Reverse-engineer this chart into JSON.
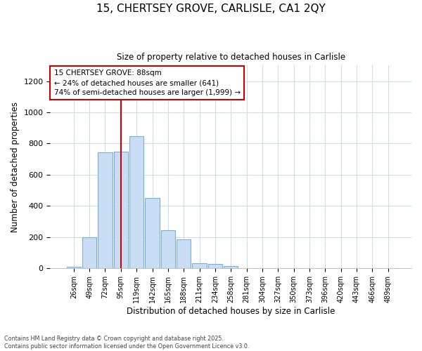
{
  "title_line1": "15, CHERTSEY GROVE, CARLISLE, CA1 2QY",
  "title_line2": "Size of property relative to detached houses in Carlisle",
  "xlabel": "Distribution of detached houses by size in Carlisle",
  "ylabel": "Number of detached properties",
  "bar_labels": [
    "26sqm",
    "49sqm",
    "72sqm",
    "95sqm",
    "119sqm",
    "142sqm",
    "165sqm",
    "188sqm",
    "211sqm",
    "234sqm",
    "258sqm",
    "281sqm",
    "304sqm",
    "327sqm",
    "350sqm",
    "373sqm",
    "396sqm",
    "420sqm",
    "443sqm",
    "466sqm",
    "489sqm"
  ],
  "bar_values": [
    10,
    200,
    745,
    750,
    845,
    450,
    245,
    185,
    35,
    30,
    15,
    0,
    0,
    0,
    0,
    0,
    0,
    0,
    0,
    0,
    2
  ],
  "bar_color": "#c9ddf5",
  "bar_edge_color": "#7bafd4",
  "red_line_x": 3.0,
  "red_line_color": "#cc0000",
  "ylim": [
    0,
    1300
  ],
  "yticks": [
    0,
    200,
    400,
    600,
    800,
    1000,
    1200
  ],
  "annotation_text": "15 CHERTSEY GROVE: 88sqm\n← 24% of detached houses are smaller (641)\n74% of semi-detached houses are larger (1,999) →",
  "annotation_box_color": "#ffffff",
  "annotation_box_edge": "#cc0000",
  "footer_line1": "Contains HM Land Registry data © Crown copyright and database right 2025.",
  "footer_line2": "Contains public sector information licensed under the Open Government Licence v3.0.",
  "bg_color": "#ffffff",
  "plot_bg_color": "#ffffff",
  "grid_color": "#d0dce8"
}
